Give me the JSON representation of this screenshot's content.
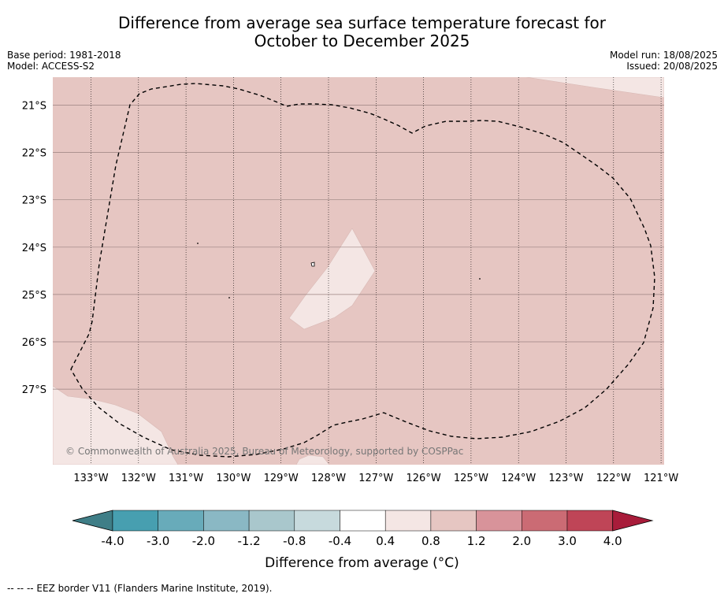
{
  "header": {
    "title_line1": "Difference from average sea surface temperature forecast for",
    "title_line2": "October to December 2025",
    "base_period": "Base period: 1981-2018",
    "model": "Model: ACCESS-S2",
    "model_run": "Model run: 18/08/2025",
    "issued": "Issued: 20/08/2025"
  },
  "map": {
    "lon_labels": [
      "133°W",
      "132°W",
      "131°W",
      "130°W",
      "129°W",
      "128°W",
      "127°W",
      "126°W",
      "125°W",
      "124°W",
      "123°W",
      "122°W",
      "121°W"
    ],
    "lat_labels": [
      "21°S",
      "22°S",
      "23°S",
      "24°S",
      "25°S",
      "26°S",
      "27°S"
    ],
    "copyright": "© Commonwealth of Australia 2025, Bureau of Meteorology, supported by COSPPac",
    "colors": {
      "anomaly_0p8_1p2": "#e6c6c2",
      "anomaly_0p4_0p8": "#f4e6e4",
      "eez_border": "#000000"
    }
  },
  "colorbar": {
    "ticks": [
      "-4.0",
      "-3.0",
      "-2.0",
      "-1.2",
      "-0.8",
      "-0.4",
      "0.4",
      "0.8",
      "1.2",
      "2.0",
      "3.0",
      "4.0"
    ],
    "colors": [
      "#3f7e87",
      "#479fb0",
      "#68abba",
      "#8ab8c4",
      "#a9c7cc",
      "#c7dadd",
      "#ffffff",
      "#f4e6e4",
      "#e6c6c2",
      "#d8939a",
      "#cb6b74",
      "#bf4557",
      "#a81c3a"
    ],
    "label": "Difference from average (°C)"
  },
  "footnote": "-- -- -- EEZ border V11 (Flanders Marine Institute, 2019)."
}
